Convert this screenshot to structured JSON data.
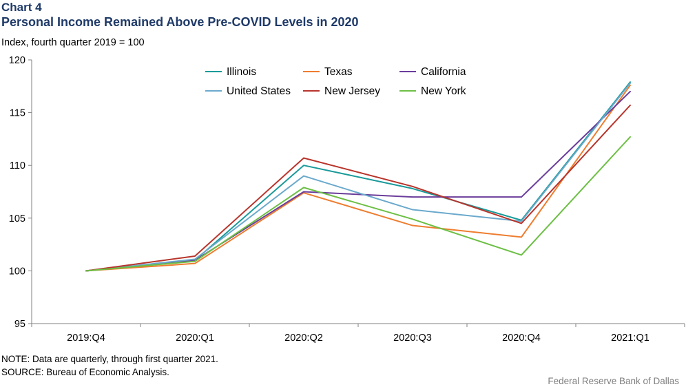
{
  "header": {
    "chart_label": "Chart 4",
    "title": "Personal Income Remained Above Pre-COVID Levels in 2020",
    "y_unit": "Index, fourth quarter 2019 = 100"
  },
  "footer": {
    "note": "NOTE: Data are quarterly, through first quarter 2021.",
    "source": "SOURCE: Bureau of Economic Analysis.",
    "credit": "Federal Reserve Bank of Dallas"
  },
  "chart_data": {
    "type": "line",
    "categories": [
      "2019:Q4",
      "2020:Q1",
      "2020:Q2",
      "2020:Q3",
      "2020:Q4",
      "2021:Q1"
    ],
    "ylim": [
      95,
      120
    ],
    "yticks": [
      95,
      100,
      105,
      110,
      115,
      120
    ],
    "grid": false,
    "legend_position": "top",
    "series": [
      {
        "name": "Illinois",
        "color": "#1a9a9a",
        "values": [
          100,
          101.0,
          110.0,
          107.8,
          104.8,
          117.9
        ]
      },
      {
        "name": "Texas",
        "color": "#ee7d2f",
        "values": [
          100,
          100.7,
          107.4,
          104.3,
          103.2,
          117.6
        ]
      },
      {
        "name": "California",
        "color": "#6a3d9a",
        "values": [
          100,
          101.0,
          107.5,
          107.0,
          107.0,
          117.0
        ]
      },
      {
        "name": "United States",
        "color": "#6aa9cc",
        "values": [
          100,
          101.1,
          109.0,
          105.8,
          104.7,
          117.8
        ]
      },
      {
        "name": "New Jersey",
        "color": "#b8342b",
        "values": [
          100,
          101.4,
          110.7,
          108.0,
          104.5,
          115.7
        ]
      },
      {
        "name": "New York",
        "color": "#6cbf44",
        "values": [
          100,
          100.9,
          107.9,
          104.9,
          101.5,
          112.7
        ]
      }
    ]
  }
}
